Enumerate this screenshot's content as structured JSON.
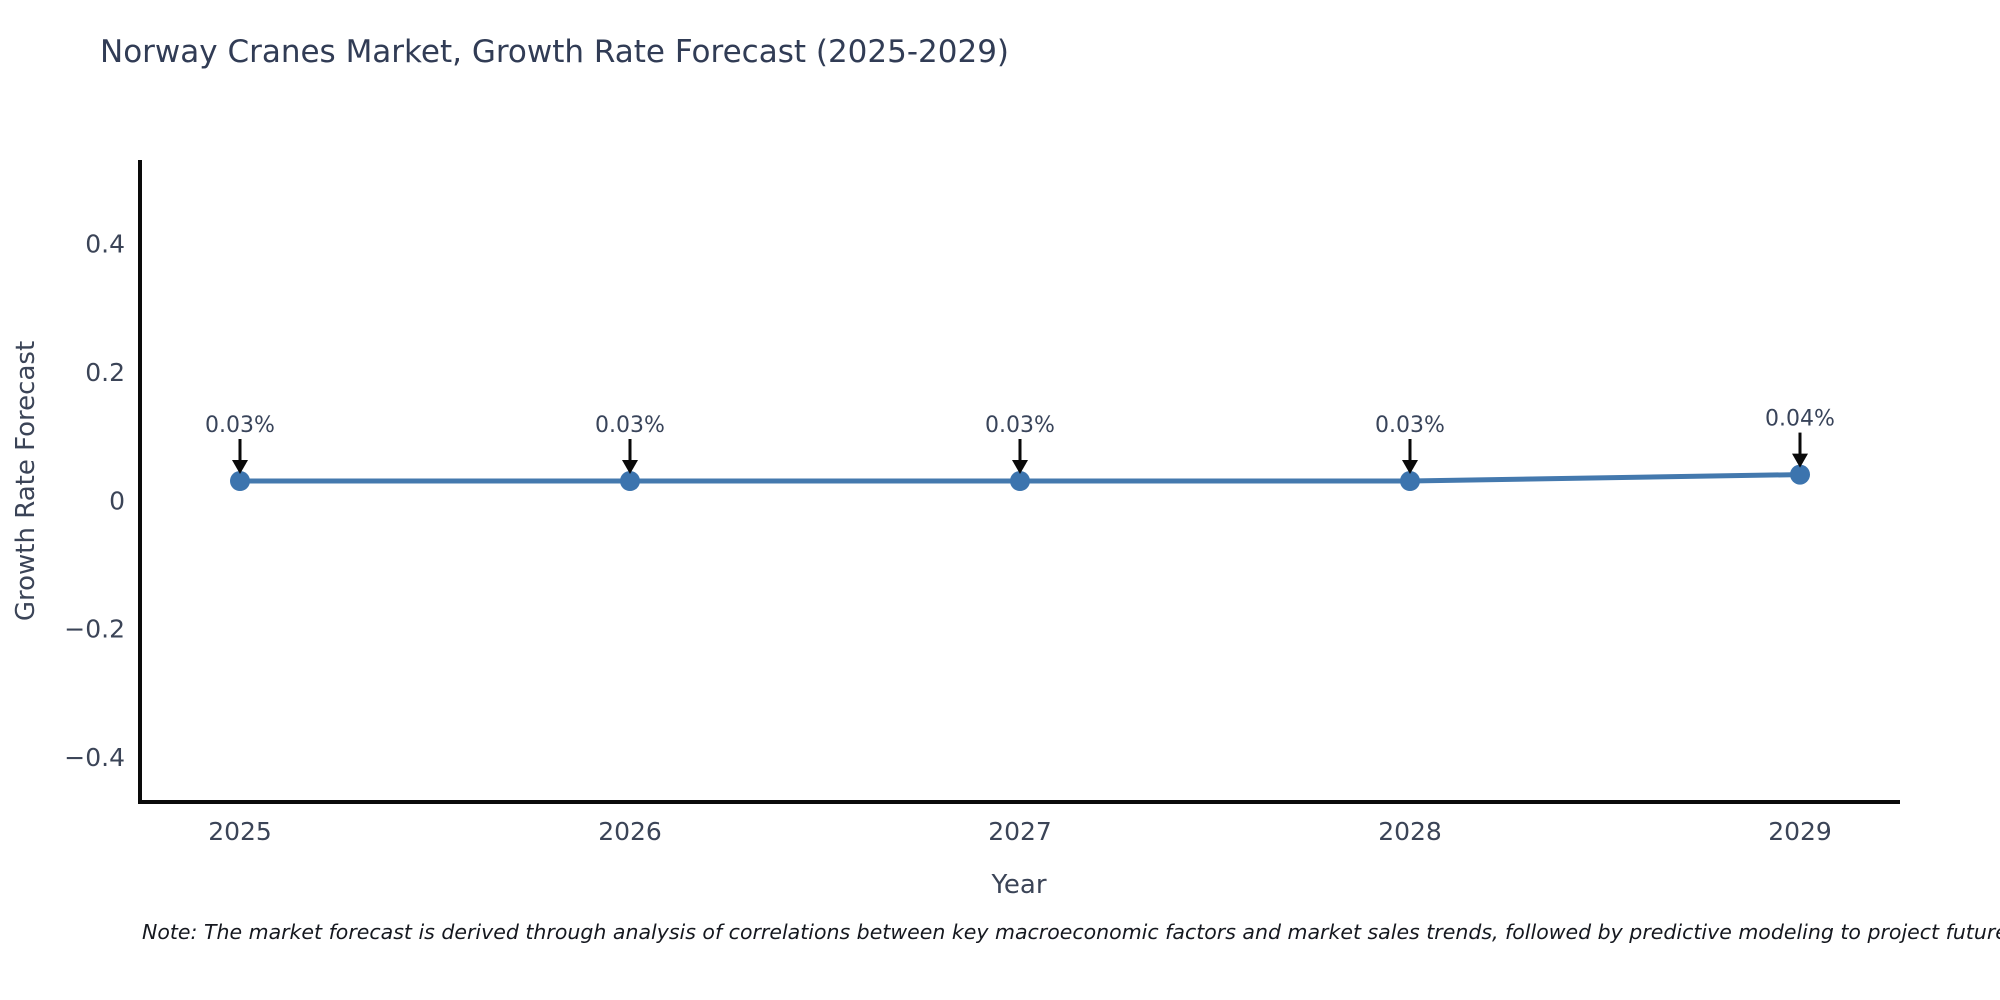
{
  "page": {
    "background": "#ffffff"
  },
  "chart_data": {
    "type": "line",
    "title": "Norway Cranes Market, Growth Rate Forecast (2025-2029)",
    "xlabel": "Year",
    "ylabel": "Growth Rate Forecast",
    "categories": [
      "2025",
      "2026",
      "2027",
      "2028",
      "2029"
    ],
    "series": [
      {
        "name": "Growth Rate Forecast",
        "values": [
          0.03,
          0.03,
          0.03,
          0.03,
          0.04
        ]
      }
    ],
    "point_labels": [
      "0.03%",
      "0.03%",
      "0.03%",
      "0.03%",
      "0.04%"
    ],
    "yticks": [
      0.4,
      0.2,
      0,
      -0.2,
      -0.4
    ],
    "ytick_labels": [
      "0.4",
      "0.2",
      "0",
      "−0.2",
      "−0.4"
    ],
    "ylim": [
      -0.47,
      0.53
    ],
    "grid": false,
    "legend": "none",
    "marker_style": "circle",
    "annotation_arrows": "down",
    "colors": {
      "line": "#4479ae",
      "marker": "#3c74ae",
      "axis": "#0a0a0a",
      "arrow": "#0a0a0a",
      "tick_text": "#3b4457",
      "title_text": "#313c55"
    }
  },
  "note": {
    "text": "Note: The market forecast is derived through analysis of correlations between key macroeconomic factors and market sales trends, followed by predictive modeling to project future sa"
  }
}
